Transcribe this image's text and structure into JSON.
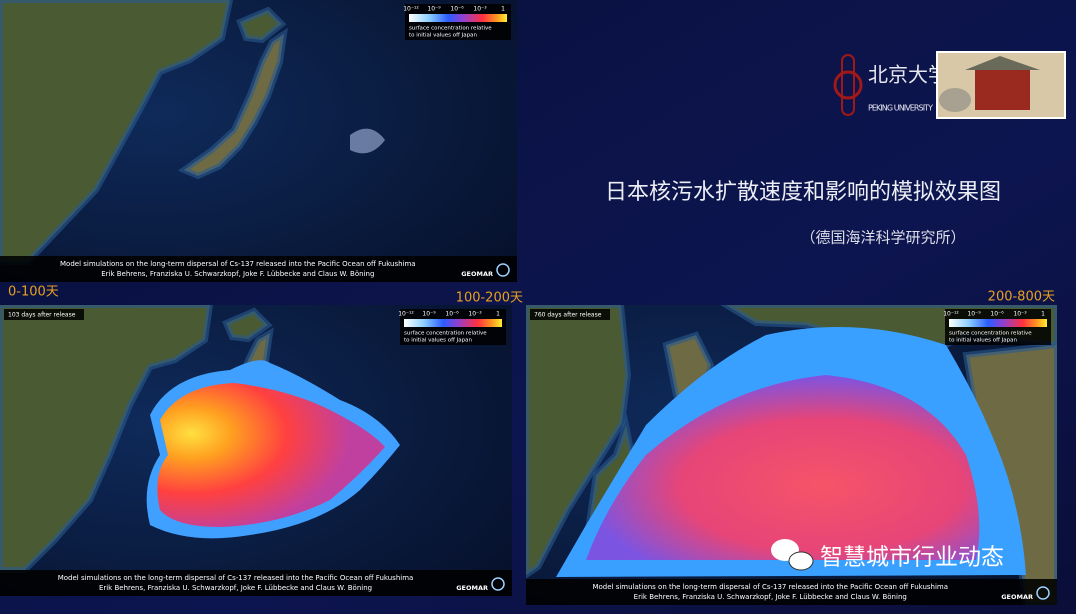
{
  "slide": {
    "title": "日本核污水扩散速度和影响的模拟效果图",
    "subtitle": "（德国海洋科学研究所）",
    "logo": {
      "name": "北京大学",
      "english": "PEKING UNIVERSITY"
    },
    "watermark": "智慧城市行业动态",
    "simulation": {
      "legend_ticks": [
        "10⁻¹²",
        "10⁻⁹",
        "10⁻⁶",
        "10⁻³",
        "1"
      ],
      "legend_text": [
        "surface concentration relative",
        "to initial values off Japan"
      ],
      "caption": "Model simulations on the long-term dispersal of Cs-137 released into the Pacific Ocean off Fukushima",
      "authors": "Erik Behrens, Franziska U. Schwarzkopf, Joke F. Lübbecke and Claus W. Böning",
      "brand": "GEOMAR"
    },
    "panels": [
      {
        "period": "0-100天"
      },
      {
        "period": "100-200天",
        "days": "103 days after release"
      },
      {
        "period": "200-800天",
        "days": "760 days after release"
      }
    ]
  }
}
